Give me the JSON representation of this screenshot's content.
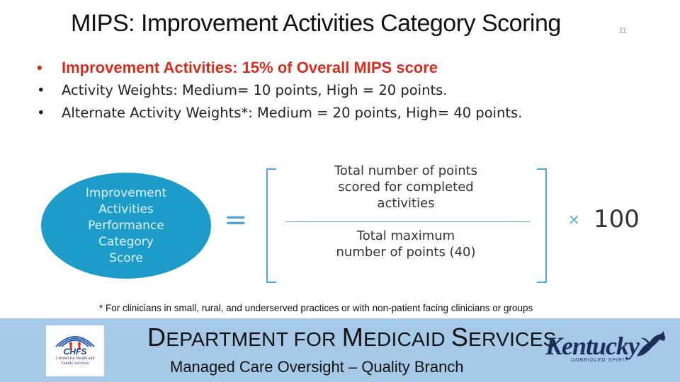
{
  "slide": {
    "title": "MIPS: Improvement Activities Category Scoring",
    "number": "11"
  },
  "bullets": [
    {
      "marker": "•",
      "text": "Improvement Activities: 15% of Overall MIPS score",
      "highlight": true
    },
    {
      "marker": "•",
      "text": "Activity Weights: Medium= 10 points, High = 20 points.",
      "highlight": false
    },
    {
      "marker": "•",
      "text": "Alternate Activity Weights*: Medium = 20 points, High= 40 points.",
      "highlight": false
    }
  ],
  "formula": {
    "lhs": "Improvement\nActivities\nPerformance\nCategory\nScore",
    "equals": "=",
    "numerator": "Total number of points\nscored for completed\nactivities",
    "denominator": "Total maximum\nnumber of points (40)",
    "times": "×",
    "multiplier": "100"
  },
  "footnote": "* For clinicians in small, rural, and underserved practices or with non-patient facing clinicians or groups",
  "footer": {
    "department": {
      "D": "D",
      "part1": "EPARTMENT FOR ",
      "M": "M",
      "part2": "EDICAID ",
      "S": "S",
      "part3": "ERVICES"
    },
    "branch": "Managed Care Oversight – Quality Branch",
    "logo_left": {
      "abbr": "CHFS",
      "name": "Cabinet for Health and\nFamily Services"
    },
    "logo_right": {
      "name": "Kentucky",
      "tagline": "UNBRIDLED SPIRIT"
    }
  },
  "colors": {
    "title_red": "#d32f1e",
    "circle_blue": "#1d9bc9",
    "footer_band": "#a7c9e8"
  }
}
